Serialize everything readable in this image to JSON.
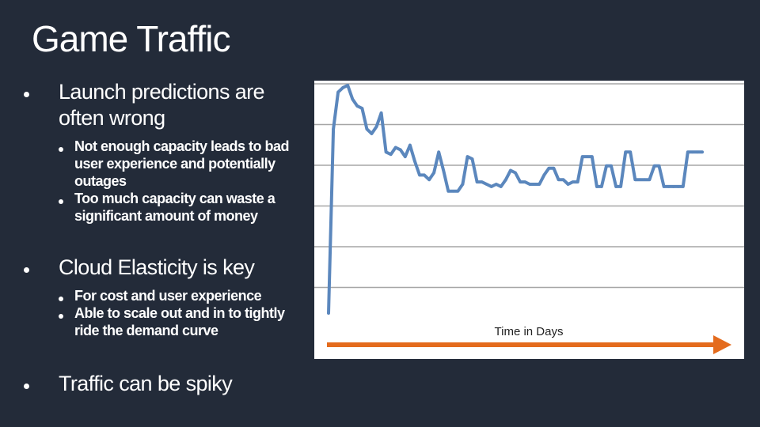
{
  "slide": {
    "title": "Game Traffic",
    "bullets": [
      {
        "text": "Launch predictions are often wrong",
        "sub": [
          "Not enough capacity leads to bad user experience and potentially outages",
          "Too much capacity can waste a significant amount of money"
        ]
      },
      {
        "text": "Cloud Elasticity is key",
        "sub": [
          "For cost and user experience",
          "Able to scale out and in to tightly ride the demand curve"
        ]
      },
      {
        "text": "Traffic can be spiky",
        "sub": []
      }
    ]
  },
  "colors": {
    "background": "#232b39",
    "line": "#5b87bd",
    "arrow": "#e46b1d",
    "grid": "#a6a6a6",
    "plot_bg": "#ffffff"
  },
  "chart_data": {
    "type": "line",
    "xlabel": "Time in Days",
    "ylabel": "",
    "title": "",
    "grid": true,
    "gridlines": 6,
    "ylim": [
      0,
      100
    ],
    "x": [
      0,
      1,
      2,
      3,
      4,
      5,
      6,
      7,
      8,
      9,
      10,
      11,
      12,
      13,
      14,
      15,
      16,
      17,
      18,
      19,
      20,
      21,
      22,
      23,
      24,
      25,
      26,
      27,
      28,
      29,
      30,
      31,
      32,
      33,
      34,
      35,
      36,
      37,
      38,
      39,
      40,
      41,
      42,
      43,
      44,
      45,
      46,
      47,
      48,
      49,
      50,
      51,
      52,
      53,
      54,
      55,
      56,
      57,
      58,
      59,
      60,
      61,
      62,
      63,
      64,
      65,
      66,
      67,
      68,
      69,
      70,
      71,
      72,
      73,
      74,
      75,
      76,
      77,
      78
    ],
    "series": [
      {
        "values": [
          0,
          80,
          96,
          98,
          99,
          93,
          90,
          89,
          80,
          78,
          81,
          87,
          70,
          69,
          72,
          71,
          68,
          73,
          66,
          60,
          60,
          58,
          61,
          70,
          62,
          53,
          53,
          53,
          56,
          68,
          67,
          57,
          57,
          56,
          55,
          56,
          55,
          58,
          62,
          61,
          57,
          57,
          56,
          56,
          56,
          60,
          63,
          63,
          58,
          58,
          56,
          57,
          57,
          68,
          68,
          68,
          55,
          55,
          64,
          64,
          55,
          55,
          70,
          70,
          58,
          58,
          58,
          58,
          64,
          64,
          55,
          55,
          55,
          55,
          55,
          70,
          70,
          70,
          70
        ]
      }
    ]
  }
}
